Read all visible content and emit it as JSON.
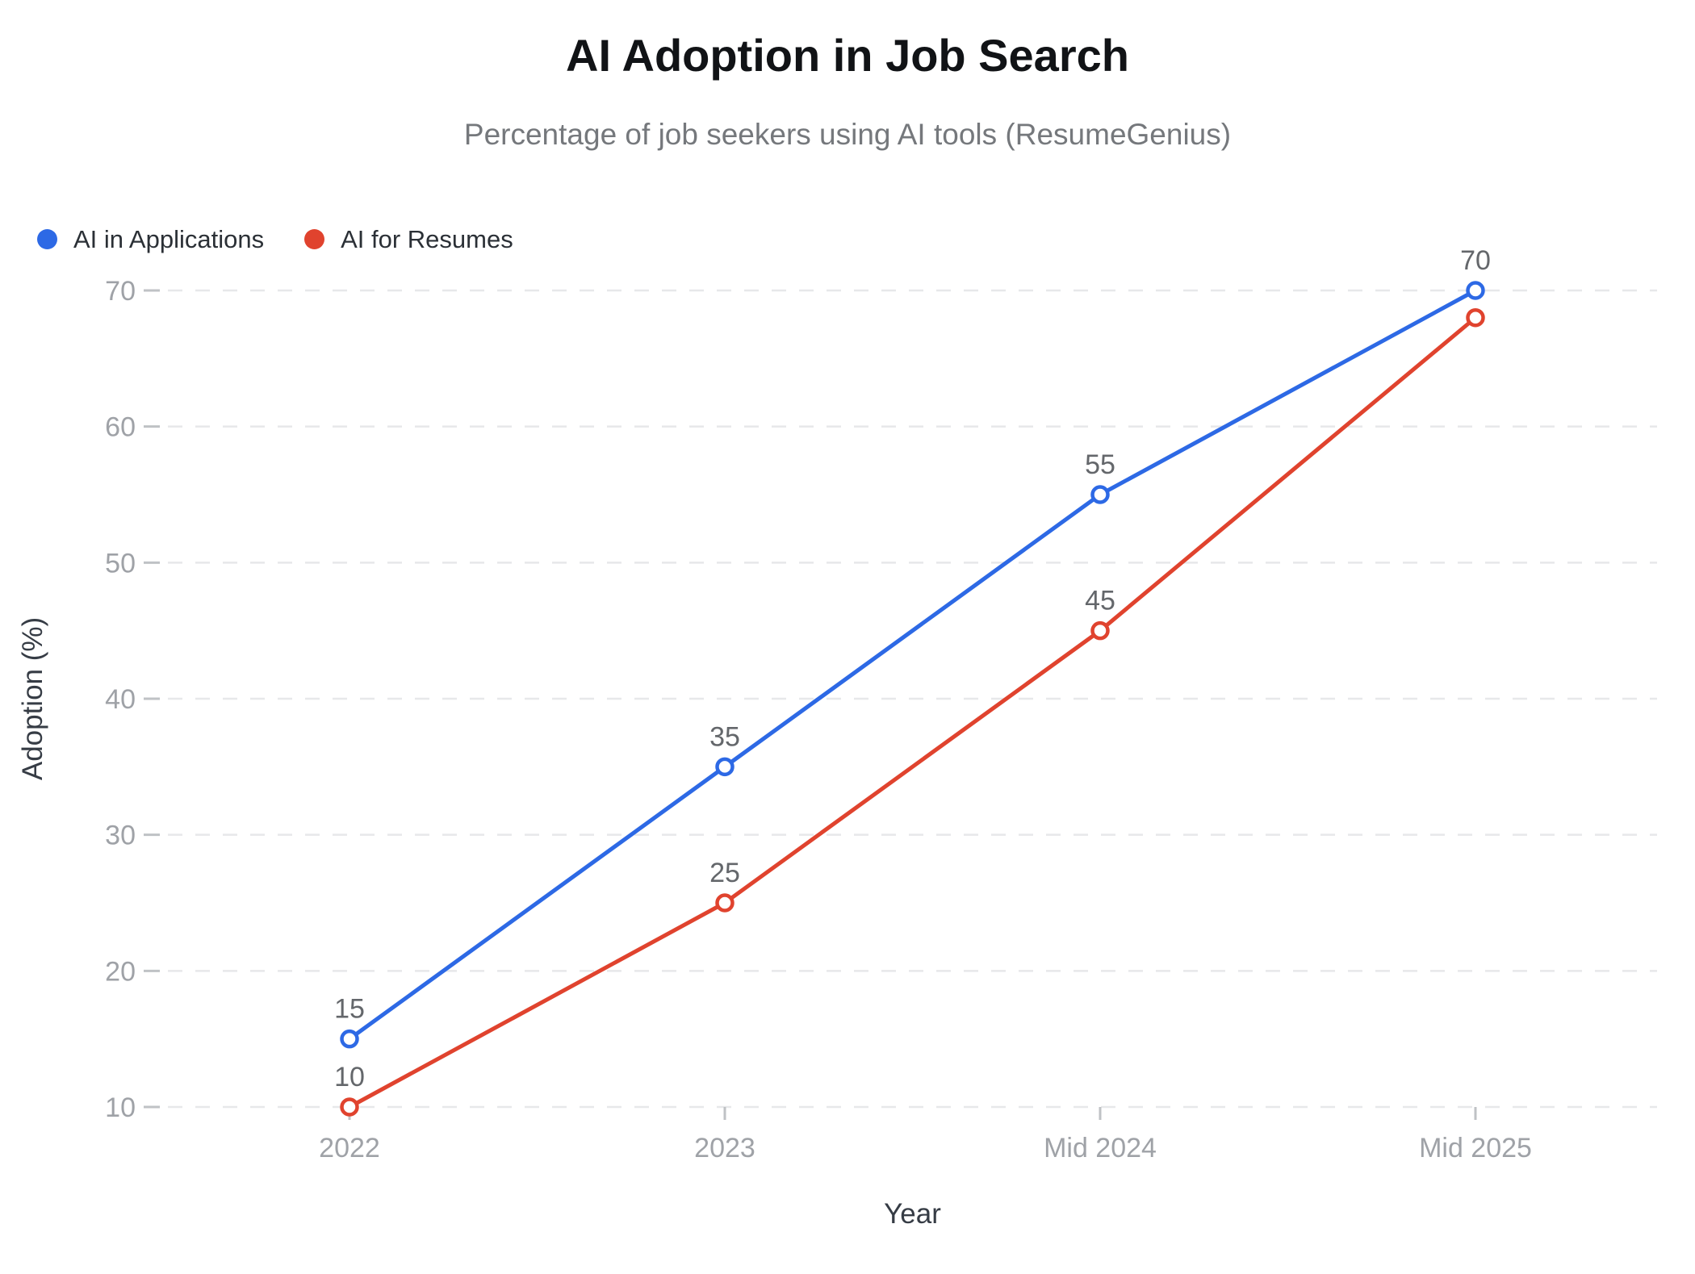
{
  "header": {
    "title": "AI Adoption in Job Search",
    "subtitle": "Percentage of job seekers using AI tools (ResumeGenius)"
  },
  "chart_data": {
    "type": "line",
    "title": "AI Adoption in Job Search",
    "subtitle": "Percentage of job seekers using AI tools (ResumeGenius)",
    "categories": [
      "2022",
      "2023",
      "Mid 2024",
      "Mid 2025"
    ],
    "series": [
      {
        "name": "AI in Applications",
        "color": "#2d69e5",
        "values": [
          15,
          35,
          55,
          70
        ],
        "point_labels": [
          "15",
          "35",
          "55",
          "70"
        ]
      },
      {
        "name": "AI for Resumes",
        "color": "#e0432e",
        "values": [
          10,
          25,
          45,
          68
        ],
        "point_labels": [
          "10",
          "25",
          "45",
          ""
        ]
      }
    ],
    "xlabel": "Year",
    "ylabel": "Adoption (%)",
    "y_ticks": [
      10,
      20,
      30,
      40,
      50,
      60,
      70
    ],
    "ylim": [
      10,
      70
    ],
    "grid": "horizontal-dashed",
    "legend_position": "top-left",
    "marker_style": "open-circle"
  },
  "colors": {
    "title": "#111316",
    "subtitle": "#75787c",
    "legend_text": "#2b3036",
    "gridline": "#e7e8ea",
    "tick_mark": "#bfc2c5",
    "tick_label": "#9fa2a7",
    "data_label": "#64676b",
    "axis_title": "#363c45",
    "background": "#ffffff"
  }
}
